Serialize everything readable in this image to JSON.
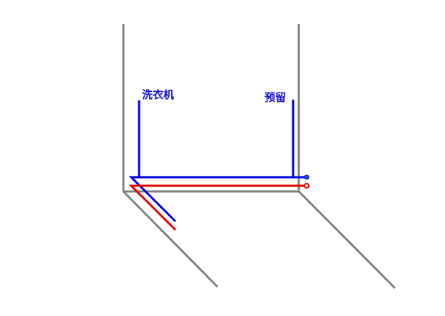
{
  "labels": {
    "washing_machine": "洗衣机",
    "reserved": "预留"
  },
  "colors": {
    "wall": "#808080",
    "cold_pipe": "#0000e6",
    "hot_pipe": "#e60000",
    "label": "#1010c8"
  }
}
